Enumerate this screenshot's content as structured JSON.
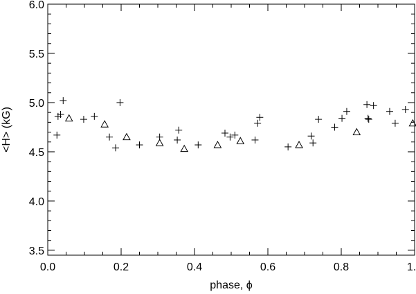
{
  "chart_data": {
    "type": "scatter",
    "title": "",
    "xlabel": "phase, ϕ",
    "ylabel": "<H> (kG)",
    "xlim": [
      0.0,
      1.0
    ],
    "ylim": [
      3.45,
      6.0
    ],
    "grid": false,
    "x_ticks": [
      0.0,
      0.2,
      0.4,
      0.6,
      0.8,
      1.0
    ],
    "x_tick_labels": [
      "0.0",
      "0.2",
      "0.4",
      "0.6",
      "0.8",
      "1.0"
    ],
    "y_ticks": [
      3.5,
      4.0,
      4.5,
      5.0,
      5.5,
      6.0
    ],
    "y_tick_labels": [
      "3.5",
      "4.0",
      "4.5",
      "5.0",
      "5.5",
      "6.0"
    ],
    "series": [
      {
        "marker": "plus",
        "points": [
          [
            0.025,
            4.67
          ],
          [
            0.028,
            4.86
          ],
          [
            0.035,
            4.88
          ],
          [
            0.042,
            5.02
          ],
          [
            0.098,
            4.83
          ],
          [
            0.127,
            4.86
          ],
          [
            0.168,
            4.65
          ],
          [
            0.185,
            4.54
          ],
          [
            0.197,
            5.0
          ],
          [
            0.25,
            4.57
          ],
          [
            0.305,
            4.65
          ],
          [
            0.353,
            4.62
          ],
          [
            0.357,
            4.72
          ],
          [
            0.41,
            4.57
          ],
          [
            0.483,
            4.69
          ],
          [
            0.497,
            4.65
          ],
          [
            0.51,
            4.67
          ],
          [
            0.565,
            4.62
          ],
          [
            0.572,
            4.79
          ],
          [
            0.578,
            4.85
          ],
          [
            0.655,
            4.55
          ],
          [
            0.718,
            4.66
          ],
          [
            0.723,
            4.59
          ],
          [
            0.738,
            4.83
          ],
          [
            0.782,
            4.75
          ],
          [
            0.802,
            4.84
          ],
          [
            0.815,
            4.91
          ],
          [
            0.87,
            4.98
          ],
          [
            0.873,
            4.84
          ],
          [
            0.875,
            4.83
          ],
          [
            0.888,
            4.97
          ],
          [
            0.932,
            4.91
          ],
          [
            0.947,
            4.79
          ],
          [
            0.975,
            4.93
          ]
        ]
      },
      {
        "marker": "triangle",
        "points": [
          [
            0.058,
            4.84
          ],
          [
            0.155,
            4.78
          ],
          [
            0.215,
            4.65
          ],
          [
            0.305,
            4.59
          ],
          [
            0.372,
            4.53
          ],
          [
            0.463,
            4.57
          ],
          [
            0.525,
            4.61
          ],
          [
            0.685,
            4.57
          ],
          [
            0.842,
            4.7
          ],
          [
            0.995,
            4.79
          ]
        ]
      }
    ]
  }
}
